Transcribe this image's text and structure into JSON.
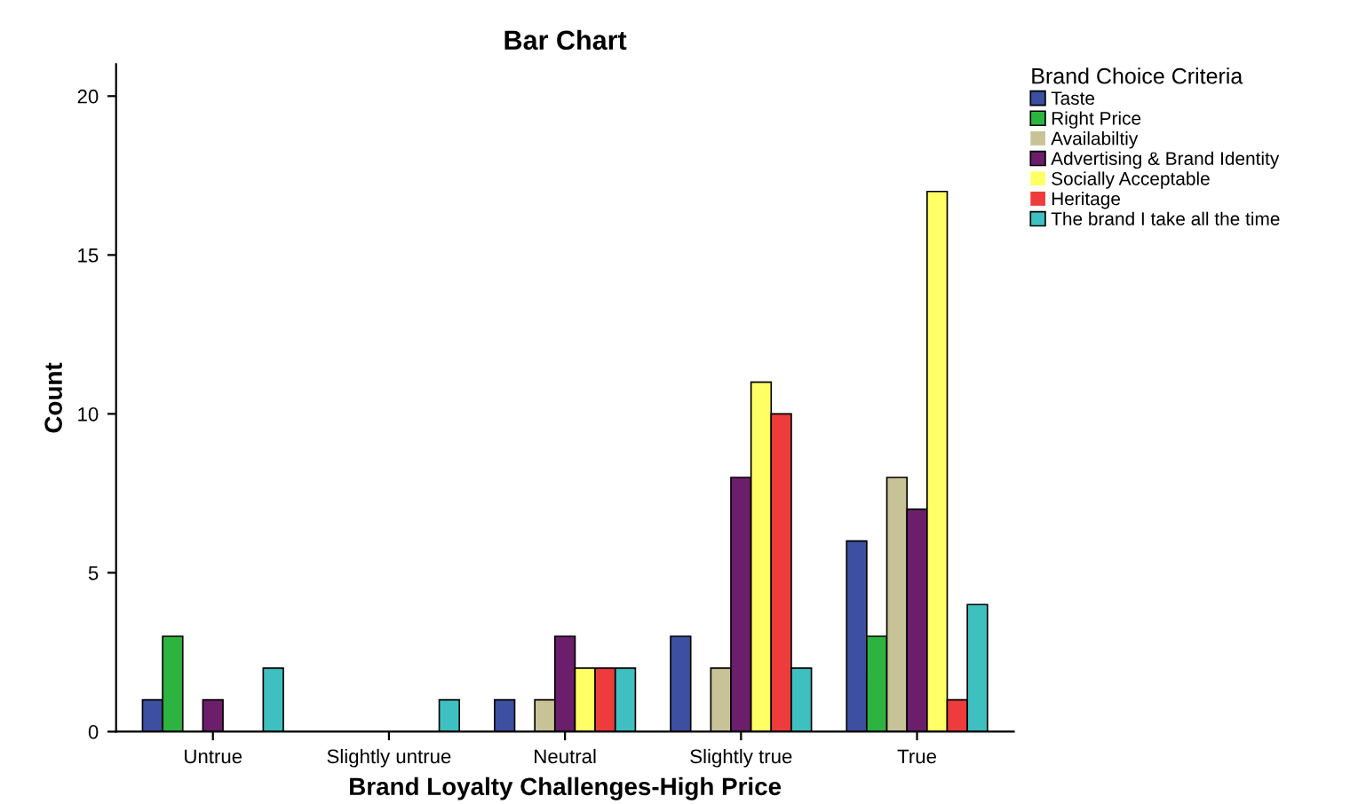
{
  "chart_data": {
    "type": "bar",
    "title": "Bar Chart",
    "xlabel": "Brand Loyalty Challenges-High Price",
    "ylabel": "Count",
    "legend_title": "Brand Choice Criteria",
    "legend": "right",
    "categories": [
      "Untrue",
      "Slightly untrue",
      "Neutral",
      "Slightly true",
      "True"
    ],
    "series": [
      {
        "name": "Taste",
        "color": "#3c4fa0",
        "values": [
          1,
          0,
          1,
          3,
          6
        ]
      },
      {
        "name": "Right Price",
        "color": "#2db33f",
        "values": [
          3,
          0,
          0,
          0,
          3
        ]
      },
      {
        "name": "Availabiltiy",
        "color": "#c8c297",
        "values": [
          0,
          0,
          1,
          2,
          8
        ]
      },
      {
        "name": "Advertising & Brand Identity",
        "color": "#6b1f6b",
        "values": [
          1,
          0,
          3,
          8,
          7
        ]
      },
      {
        "name": "Socially Acceptable",
        "color": "#ffff66",
        "values": [
          0,
          0,
          2,
          11,
          17
        ]
      },
      {
        "name": "Heritage",
        "color": "#ee3b3b",
        "values": [
          0,
          0,
          2,
          10,
          1
        ]
      },
      {
        "name": "The brand I take all the time",
        "color": "#3fc0c0",
        "values": [
          2,
          1,
          2,
          2,
          4
        ]
      }
    ],
    "ylim": [
      0,
      21
    ],
    "yticks": [
      0,
      5,
      10,
      15,
      20
    ],
    "grid": false
  }
}
